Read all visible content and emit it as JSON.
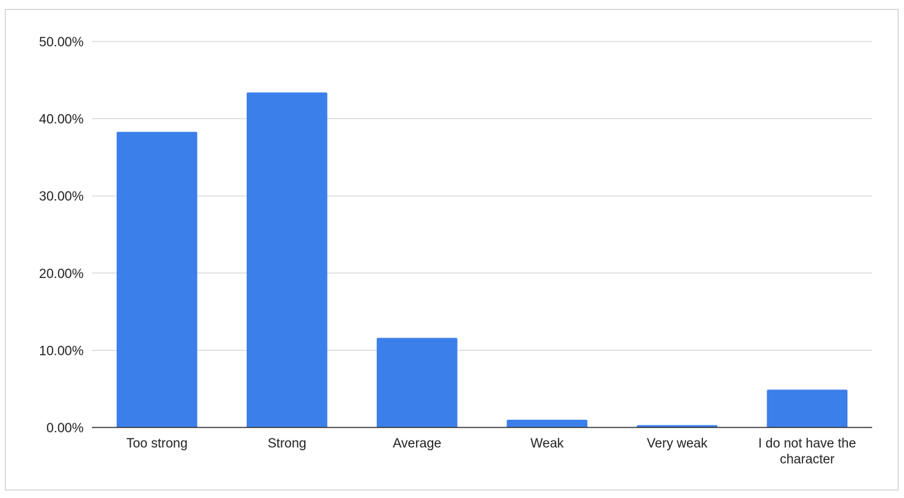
{
  "chart_data": {
    "type": "bar",
    "title": "",
    "xlabel": "",
    "ylabel": "",
    "categories": [
      "Too strong",
      "Strong",
      "Average",
      "Weak",
      "Very weak",
      "I do not have the character"
    ],
    "values": [
      38.3,
      43.4,
      11.6,
      1.0,
      0.3,
      4.9
    ],
    "value_unit": "%",
    "ylim": [
      0,
      50
    ],
    "yticks": [
      0,
      10,
      20,
      30,
      40,
      50
    ],
    "ytick_labels": [
      "0.00%",
      "10.00%",
      "20.00%",
      "30.00%",
      "40.00%",
      "50.00%"
    ],
    "grid": true,
    "legend": "none",
    "bar_color": "#3b7fea"
  }
}
